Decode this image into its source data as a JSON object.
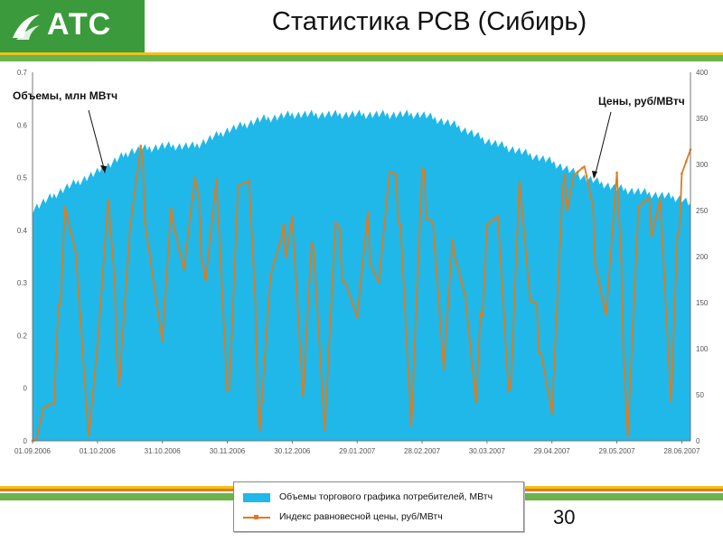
{
  "header": {
    "logo_text": "АТС",
    "title": "Статистика РСВ (Сибирь)"
  },
  "page_number": "30",
  "colors": {
    "volume_area": "#1fb8e8",
    "price_line": "#e07b1c",
    "brand_green": "#3b9a3c",
    "stripe_yellow": "#f0c21a"
  },
  "chart_data": {
    "type": "line",
    "subtype": "area-and-line combo (dual axis)",
    "x_tick_labels": [
      "01.09.2006",
      "01.10.2006",
      "31.10.2006",
      "30.11.2006",
      "30.12.2006",
      "29.01.2007",
      "28.02.2007",
      "30.03.2007",
      "29.04.2007",
      "29.05.2007",
      "28.06.2007"
    ],
    "y_left": {
      "tick_labels": [
        "0",
        "0",
        "0.2",
        "0.3",
        "0.4",
        "0.5",
        "0.6",
        "0.7"
      ],
      "range": [
        0,
        0.7
      ]
    },
    "y_right": {
      "tick_labels": [
        "0",
        "50",
        "100",
        "150",
        "200",
        "250",
        "300",
        "350",
        "400"
      ],
      "range": [
        0,
        400
      ]
    },
    "annotations": {
      "left": "Объемы, млн МВтч",
      "right": "Цены, руб/МВтч"
    },
    "legend": {
      "placement": "bottom",
      "entries": [
        "Объемы торгового графика потребителей, МВтч",
        "Индекс равновесной цены, руб/МВтч"
      ]
    },
    "series": [
      {
        "name": "Объемы торгового графика потребителей, МВтч",
        "axis": "left",
        "kind": "area",
        "anchors": [
          [
            0,
            0.44
          ],
          [
            15,
            0.48
          ],
          [
            30,
            0.51
          ],
          [
            45,
            0.55
          ],
          [
            60,
            0.56
          ],
          [
            75,
            0.56
          ],
          [
            90,
            0.59
          ],
          [
            105,
            0.61
          ],
          [
            120,
            0.62
          ],
          [
            135,
            0.62
          ],
          [
            150,
            0.62
          ],
          [
            165,
            0.62
          ],
          [
            180,
            0.62
          ],
          [
            195,
            0.6
          ],
          [
            210,
            0.57
          ],
          [
            225,
            0.55
          ],
          [
            240,
            0.53
          ],
          [
            255,
            0.5
          ],
          [
            270,
            0.48
          ],
          [
            285,
            0.47
          ],
          [
            300,
            0.46
          ],
          [
            304,
            0.45
          ]
        ]
      },
      {
        "name": "Индекс равновесной цены, руб/МВтч",
        "axis": "right",
        "kind": "line",
        "anchors": [
          [
            0,
            5
          ],
          [
            5,
            40
          ],
          [
            10,
            25
          ],
          [
            15,
            270
          ],
          [
            20,
            200
          ],
          [
            25,
            10
          ],
          [
            30,
            110
          ],
          [
            35,
            250
          ],
          [
            40,
            80
          ],
          [
            45,
            230
          ],
          [
            50,
            300
          ],
          [
            55,
            200
          ],
          [
            60,
            100
          ],
          [
            65,
            260
          ],
          [
            70,
            190
          ],
          [
            75,
            270
          ],
          [
            80,
            190
          ],
          [
            85,
            280
          ],
          [
            90,
            30
          ],
          [
            95,
            285
          ],
          [
            100,
            270
          ],
          [
            105,
            30
          ],
          [
            110,
            180
          ],
          [
            115,
            200
          ],
          [
            120,
            255
          ],
          [
            125,
            40
          ],
          [
            130,
            230
          ],
          [
            135,
            15
          ],
          [
            140,
            220
          ],
          [
            145,
            185
          ],
          [
            150,
            130
          ],
          [
            155,
            225
          ],
          [
            160,
            180
          ],
          [
            165,
            280
          ],
          [
            170,
            255
          ],
          [
            175,
            15
          ],
          [
            180,
            275
          ],
          [
            185,
            250
          ],
          [
            190,
            70
          ],
          [
            195,
            225
          ],
          [
            200,
            160
          ],
          [
            205,
            25
          ],
          [
            210,
            250
          ],
          [
            215,
            240
          ],
          [
            220,
            30
          ],
          [
            225,
            290
          ],
          [
            230,
            140
          ],
          [
            235,
            115
          ],
          [
            240,
            30
          ],
          [
            245,
            255
          ],
          [
            250,
            300
          ],
          [
            255,
            290
          ],
          [
            260,
            215
          ],
          [
            265,
            140
          ],
          [
            270,
            275
          ],
          [
            275,
            20
          ],
          [
            280,
            250
          ],
          [
            285,
            240
          ],
          [
            290,
            270
          ],
          [
            295,
            30
          ],
          [
            300,
            310
          ],
          [
            304,
            320
          ]
        ]
      }
    ]
  }
}
